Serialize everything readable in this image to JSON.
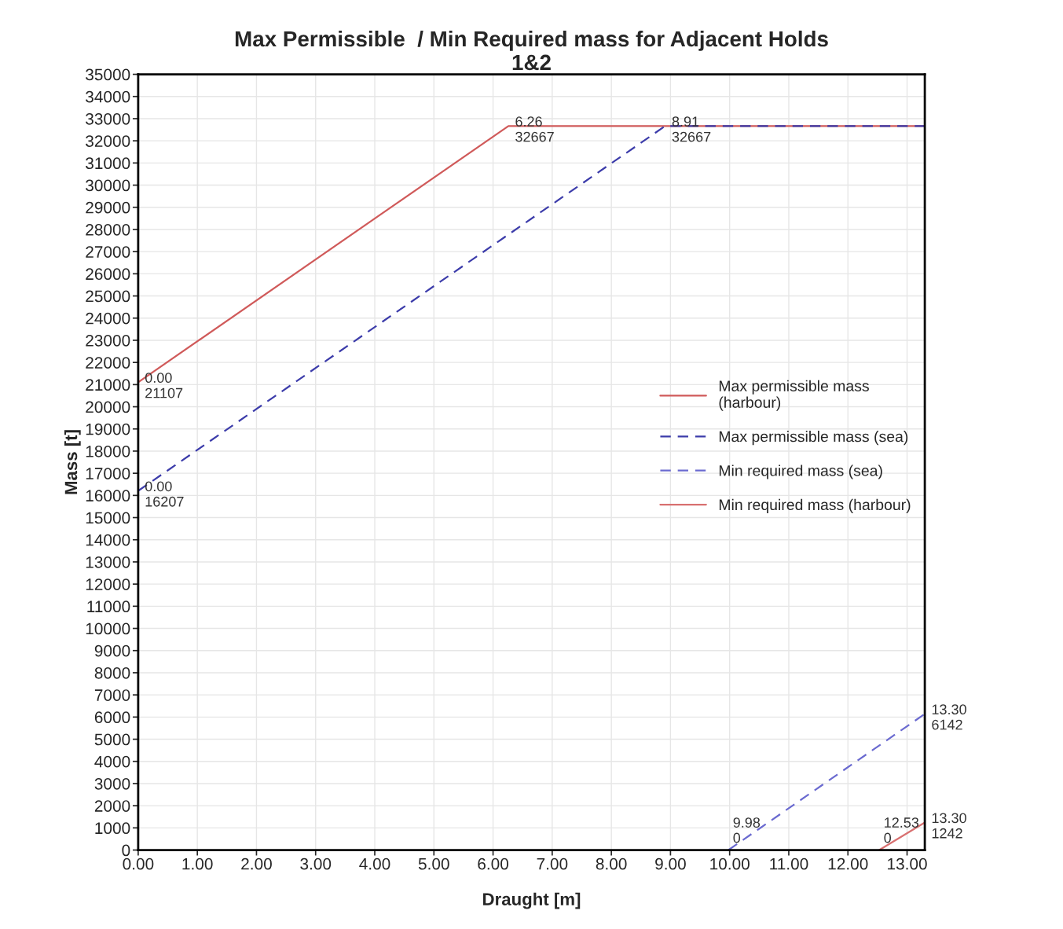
{
  "chart_data": {
    "type": "line",
    "title": "Max Permissible  / Min Required mass for Adjacent Holds\n1&2",
    "xlabel": "Draught [m]",
    "ylabel": "Mass [t]",
    "series": [
      {
        "name": "Max permissible mass\n(harbour)",
        "color": "#d05a5a",
        "line_style": "solid",
        "x": [
          0,
          6.26,
          13.3
        ],
        "values": [
          21107,
          32667,
          32667
        ]
      },
      {
        "name": "Max permissible mass (sea)",
        "color": "#3c3caa",
        "line_style": "dashed",
        "x": [
          0,
          8.91,
          13.3
        ],
        "values": [
          16207,
          32667,
          32667
        ]
      },
      {
        "name": "Min required mass (sea)",
        "color": "#6a6ad0",
        "line_style": "dashed",
        "x": [
          9.98,
          13.3
        ],
        "values": [
          0,
          6142
        ]
      },
      {
        "name": "Min required mass (harbour)",
        "color": "#d87070",
        "line_style": "solid",
        "x": [
          12.53,
          13.3
        ],
        "values": [
          0,
          1242
        ]
      }
    ],
    "annotations": [
      {
        "text": "0.00\n21107",
        "x": 0,
        "y": 21107
      },
      {
        "text": "6.26\n32667",
        "x": 6.26,
        "y": 32667
      },
      {
        "text": "8.91\n32667",
        "x": 8.91,
        "y": 32667
      },
      {
        "text": "0.00\n16207",
        "x": 0,
        "y": 16207
      },
      {
        "text": "13.30\n6142",
        "x": 13.3,
        "y": 6142
      },
      {
        "text": "13.30\n1242",
        "x": 13.3,
        "y": 1242
      },
      {
        "text": "9.98\n0",
        "x": 9.98,
        "y": 0
      },
      {
        "text": "12.53\n0",
        "x": 12.53,
        "y": 0
      }
    ],
    "xlim": [
      0,
      13.3
    ],
    "ylim": [
      0,
      35000
    ],
    "xticks": [
      {
        "value": 0,
        "label": "0.00"
      },
      {
        "value": 1,
        "label": "1.00"
      },
      {
        "value": 2,
        "label": "2.00"
      },
      {
        "value": 3,
        "label": "3.00"
      },
      {
        "value": 4,
        "label": "4.00"
      },
      {
        "value": 5,
        "label": "5.00"
      },
      {
        "value": 6,
        "label": "6.00"
      },
      {
        "value": 7,
        "label": "7.00"
      },
      {
        "value": 8,
        "label": "8.00"
      },
      {
        "value": 9,
        "label": "9.00"
      },
      {
        "value": 10,
        "label": "10.00"
      },
      {
        "value": 11,
        "label": "11.00"
      },
      {
        "value": 12,
        "label": "12.00"
      },
      {
        "value": 13,
        "label": "13.00"
      }
    ],
    "yticks": [
      0,
      1000,
      2000,
      3000,
      4000,
      5000,
      6000,
      7000,
      8000,
      9000,
      10000,
      11000,
      12000,
      13000,
      14000,
      15000,
      16000,
      17000,
      18000,
      19000,
      20000,
      21000,
      22000,
      23000,
      24000,
      25000,
      26000,
      27000,
      28000,
      29000,
      30000,
      31000,
      32000,
      33000,
      34000,
      35000
    ],
    "grid": true,
    "legend": "right"
  }
}
